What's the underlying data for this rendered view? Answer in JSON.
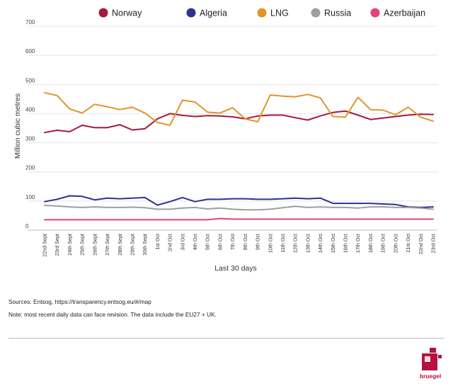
{
  "chart_data": {
    "type": "line",
    "title": "",
    "xlabel": "Last 30 days",
    "ylabel": "Million cubic metres",
    "ylim": [
      0,
      700
    ],
    "yticks": [
      0,
      100,
      200,
      300,
      400,
      500,
      600,
      700
    ],
    "grid": true,
    "legend": "top",
    "categories": [
      "22nd Sept",
      "23rd Sept",
      "24th Sept",
      "25th Sept",
      "26th Sept",
      "27th Sept",
      "28th Sept",
      "29th Sept",
      "30th Sept",
      "1st Oct",
      "2nd Oct",
      "3rd Oct",
      "4th Oct",
      "5th Oct",
      "6th Oct",
      "7th Oct",
      "8th Oct",
      "9th Oct",
      "10th Oct",
      "11th Oct",
      "12th Oct",
      "13th Oct",
      "14th Oct",
      "15th Oct",
      "16th Oct",
      "17th Oct",
      "18th Oct",
      "19th Oct",
      "20th Oct",
      "21st Oct",
      "22nd Oct",
      "23rd Oct"
    ],
    "series": [
      {
        "name": "Norway",
        "color": "#a8173c",
        "values": [
          335,
          343,
          338,
          360,
          352,
          352,
          362,
          344,
          348,
          382,
          400,
          394,
          390,
          393,
          392,
          389,
          382,
          392,
          395,
          395,
          386,
          378,
          392,
          404,
          409,
          395,
          380,
          385,
          390,
          395,
          398,
          397
        ]
      },
      {
        "name": "Algeria",
        "color": "#2e3192",
        "values": [
          98,
          106,
          118,
          116,
          104,
          110,
          108,
          110,
          112,
          86,
          98,
          112,
          98,
          106,
          106,
          108,
          108,
          106,
          106,
          108,
          110,
          108,
          110,
          92,
          92,
          92,
          92,
          90,
          88,
          80,
          78,
          80
        ]
      },
      {
        "name": "LNG",
        "color": "#e0952b",
        "values": [
          472,
          462,
          416,
          402,
          432,
          424,
          414,
          422,
          402,
          370,
          360,
          446,
          440,
          405,
          402,
          420,
          382,
          372,
          464,
          460,
          458,
          466,
          454,
          390,
          388,
          456,
          414,
          412,
          396,
          422,
          388,
          374
        ]
      },
      {
        "name": "Russia",
        "color": "#9e9e9e",
        "values": [
          85,
          83,
          80,
          78,
          80,
          78,
          78,
          79,
          77,
          72,
          72,
          76,
          78,
          73,
          76,
          72,
          70,
          70,
          72,
          77,
          82,
          78,
          80,
          78,
          78,
          76,
          80,
          80,
          78,
          78,
          76,
          72
        ]
      },
      {
        "name": "Azerbaijan",
        "color": "#e4417e",
        "values": [
          36,
          36,
          36,
          36,
          36,
          36,
          36,
          36,
          36,
          36,
          36,
          36,
          36,
          36,
          40,
          38,
          38,
          38,
          38,
          38,
          38,
          38,
          38,
          38,
          38,
          38,
          38,
          38,
          38,
          38,
          38,
          38
        ]
      }
    ]
  },
  "footer": {
    "sources": "Sources: Entsog,   https://transparency.entsog.eu/#/map",
    "note": "Note: most recent daily data can face revision. The data include the EU27 + UK."
  },
  "logo": {
    "text": "bruegel",
    "color": "#b5123f"
  }
}
